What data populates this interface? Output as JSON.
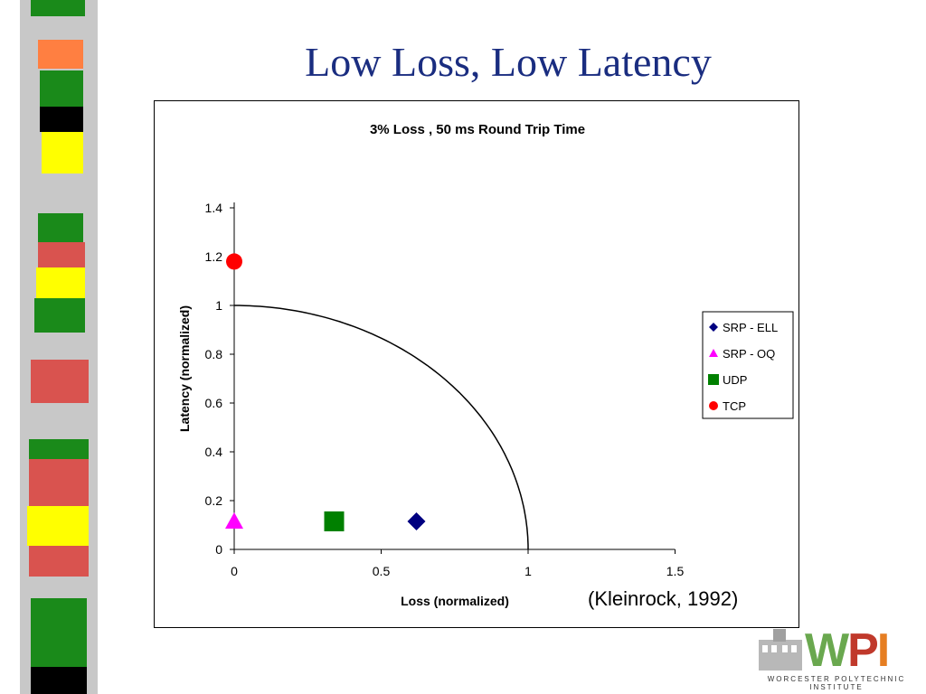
{
  "slide": {
    "title": "Low Loss, Low Latency",
    "citation": "(Kleinrock, 1992)"
  },
  "logo": {
    "letters": "WPI",
    "tagline": "WORCESTER POLYTECHNIC INSTITUTE"
  },
  "chart_data": {
    "type": "scatter",
    "title": "3% Loss , 50 ms Round Trip Time",
    "xlabel": "Loss (normalized)",
    "ylabel": "Latency (normalized)",
    "xlim": [
      0,
      1.5
    ],
    "ylim": [
      0,
      1.4
    ],
    "xticks": [
      "0",
      "0.5",
      "1",
      "1.5"
    ],
    "yticks": [
      "0",
      "0.2",
      "0.4",
      "0.6",
      "0.8",
      "1",
      "1.2",
      "1.4"
    ],
    "reference_curve": "quarter circle, radius 1",
    "legend_position": "right",
    "series": [
      {
        "name": "SRP - ELL",
        "marker": "diamond",
        "color": "#000080",
        "x": 0.62,
        "y": 0.115
      },
      {
        "name": "SRP - OQ",
        "marker": "triangle",
        "color": "#ff00ff",
        "x": 0.0,
        "y": 0.115
      },
      {
        "name": "UDP",
        "marker": "square",
        "color": "#008000",
        "x": 0.34,
        "y": 0.115
      },
      {
        "name": "TCP",
        "marker": "circle",
        "color": "#ff0000",
        "x": 0.0,
        "y": 1.18
      }
    ]
  },
  "colors": {
    "title": "#1a2d80",
    "wpi_w": "#6aa84f",
    "wpi_p": "#c0392b",
    "wpi_i": "#e67e22"
  }
}
